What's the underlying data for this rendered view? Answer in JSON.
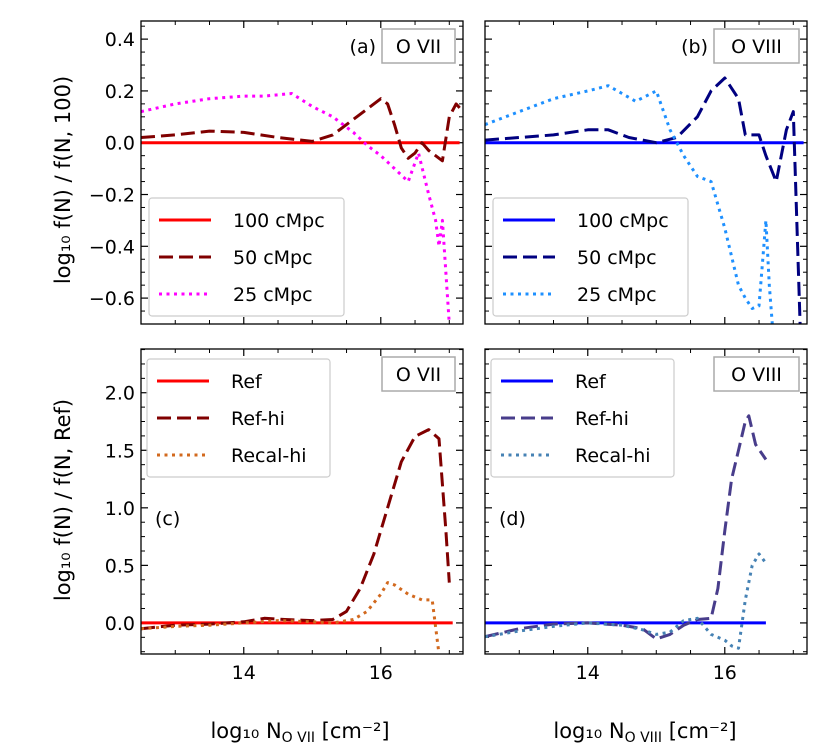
{
  "chart_data": [
    {
      "id": "a",
      "type": "line",
      "panel_label": "(a)",
      "ion_label": "O VII",
      "xlim": [
        12.5,
        17.2
      ],
      "ylim": [
        -0.7,
        0.47
      ],
      "xticks": [
        14,
        16
      ],
      "xtick_labels": [
        "14",
        "16"
      ],
      "yticks": [
        -0.6,
        -0.4,
        -0.2,
        0.0,
        0.2,
        0.4
      ],
      "ytick_labels": [
        "−0.6",
        "−0.4",
        "−0.2",
        "0.0",
        "0.2",
        "0.4"
      ],
      "legend_loc": "lower-left",
      "series": [
        {
          "name": "100 cMpc",
          "color": "#ff0000",
          "dash": "solid",
          "x": [
            12.5,
            17.15
          ],
          "y": [
            0.0,
            0.0
          ]
        },
        {
          "name": "50 cMpc",
          "color": "#800000",
          "dash": "dashed",
          "x": [
            12.5,
            13.0,
            13.5,
            14.0,
            14.5,
            15.0,
            15.3,
            15.6,
            15.8,
            16.0,
            16.1,
            16.2,
            16.3,
            16.4,
            16.5,
            16.6,
            16.7,
            16.8,
            16.9,
            17.0,
            17.1,
            17.2
          ],
          "y": [
            0.02,
            0.03,
            0.045,
            0.04,
            0.02,
            0.005,
            0.03,
            0.09,
            0.13,
            0.17,
            0.15,
            0.07,
            -0.02,
            -0.06,
            -0.04,
            0.0,
            -0.03,
            -0.05,
            -0.07,
            0.1,
            0.15,
            0.12
          ]
        },
        {
          "name": "25 cMpc",
          "color": "#ff00ff",
          "dash": "dotted",
          "x": [
            12.5,
            13.0,
            13.5,
            14.0,
            14.3,
            14.7,
            15.0,
            15.3,
            15.6,
            15.8,
            16.0,
            16.2,
            16.4,
            16.55,
            16.7,
            16.8,
            16.85,
            16.9,
            17.0
          ],
          "y": [
            0.12,
            0.15,
            0.17,
            0.18,
            0.18,
            0.19,
            0.14,
            0.1,
            0.04,
            -0.01,
            -0.05,
            -0.1,
            -0.15,
            -0.04,
            -0.2,
            -0.3,
            -0.4,
            -0.3,
            -0.7
          ]
        }
      ]
    },
    {
      "id": "b",
      "type": "line",
      "panel_label": "(b)",
      "ion_label": "O VIII",
      "xlim": [
        12.5,
        17.2
      ],
      "ylim": [
        -0.7,
        0.47
      ],
      "xticks": [
        14,
        16
      ],
      "xtick_labels": [
        "14",
        "16"
      ],
      "yticks": [
        -0.6,
        -0.4,
        -0.2,
        0.0,
        0.2,
        0.4
      ],
      "legend_loc": "lower-left",
      "series": [
        {
          "name": "100 cMpc",
          "color": "#0000ff",
          "dash": "solid",
          "x": [
            12.5,
            17.15
          ],
          "y": [
            0.0,
            0.0
          ]
        },
        {
          "name": "50 cMpc",
          "color": "#000080",
          "dash": "dashed",
          "x": [
            12.5,
            13.0,
            13.5,
            14.0,
            14.3,
            14.6,
            15.0,
            15.3,
            15.6,
            15.8,
            16.0,
            16.2,
            16.3,
            16.5,
            16.6,
            16.75,
            16.9,
            17.0,
            17.1
          ],
          "y": [
            0.01,
            0.02,
            0.03,
            0.05,
            0.05,
            0.02,
            0.0,
            0.02,
            0.1,
            0.2,
            0.25,
            0.17,
            0.03,
            0.03,
            -0.05,
            -0.15,
            0.05,
            0.12,
            -0.7
          ]
        },
        {
          "name": "25 cMpc",
          "color": "#1e90ff",
          "dash": "dotted",
          "x": [
            12.5,
            13.0,
            13.5,
            14.0,
            14.3,
            14.5,
            14.7,
            15.0,
            15.2,
            15.4,
            15.6,
            15.8,
            16.0,
            16.2,
            16.3,
            16.4,
            16.5,
            16.6,
            16.65,
            16.7
          ],
          "y": [
            0.07,
            0.12,
            0.17,
            0.2,
            0.22,
            0.19,
            0.16,
            0.2,
            0.05,
            -0.05,
            -0.13,
            -0.15,
            -0.33,
            -0.55,
            -0.6,
            -0.64,
            -0.63,
            -0.3,
            -0.55,
            -0.72
          ]
        }
      ]
    },
    {
      "id": "c",
      "type": "line",
      "panel_label": "(c)",
      "ion_label": "O VII",
      "xlim": [
        12.5,
        17.2
      ],
      "ylim": [
        -0.27,
        2.38
      ],
      "xticks": [
        14,
        16
      ],
      "xtick_labels": [
        "14",
        "16"
      ],
      "yticks": [
        0.0,
        0.5,
        1.0,
        1.5,
        2.0
      ],
      "ytick_labels": [
        "0.0",
        "0.5",
        "1.0",
        "1.5",
        "2.0"
      ],
      "legend_loc": "upper-left",
      "series": [
        {
          "name": "Ref",
          "color": "#ff0000",
          "dash": "solid",
          "x": [
            12.5,
            17.05
          ],
          "y": [
            0.0,
            0.0
          ]
        },
        {
          "name": "Ref-hi",
          "color": "#800000",
          "dash": "dashed",
          "x": [
            12.5,
            13.0,
            13.5,
            14.0,
            14.3,
            14.6,
            15.0,
            15.3,
            15.5,
            15.7,
            15.9,
            16.1,
            16.3,
            16.5,
            16.7,
            16.85,
            16.95,
            17.0
          ],
          "y": [
            -0.05,
            -0.02,
            -0.01,
            0.01,
            0.04,
            0.03,
            0.02,
            0.03,
            0.1,
            0.3,
            0.6,
            1.0,
            1.4,
            1.62,
            1.68,
            1.6,
            0.8,
            0.35
          ]
        },
        {
          "name": "Recal-hi",
          "color": "#d2691e",
          "dash": "dotted",
          "x": [
            12.5,
            13.0,
            13.5,
            14.0,
            14.5,
            15.0,
            15.3,
            15.6,
            15.8,
            16.0,
            16.1,
            16.2,
            16.4,
            16.6,
            16.75,
            16.85
          ],
          "y": [
            -0.05,
            -0.03,
            -0.02,
            0.0,
            0.02,
            0.01,
            0.0,
            0.03,
            0.1,
            0.25,
            0.35,
            0.33,
            0.25,
            0.2,
            0.2,
            -0.27
          ]
        }
      ]
    },
    {
      "id": "d",
      "type": "line",
      "panel_label": "(d)",
      "ion_label": "O VIII",
      "xlim": [
        12.5,
        17.2
      ],
      "ylim": [
        -0.27,
        2.38
      ],
      "xticks": [
        14,
        16
      ],
      "xtick_labels": [
        "14",
        "16"
      ],
      "yticks": [
        0.0,
        0.5,
        1.0,
        1.5,
        2.0
      ],
      "legend_loc": "upper-left",
      "series": [
        {
          "name": "Ref",
          "color": "#0000ff",
          "dash": "solid",
          "x": [
            12.5,
            16.6
          ],
          "y": [
            0.0,
            0.0
          ]
        },
        {
          "name": "Ref-hi",
          "color": "#483d8b",
          "dash": "dashed",
          "x": [
            12.5,
            13.0,
            13.5,
            14.0,
            14.5,
            14.8,
            15.0,
            15.2,
            15.4,
            15.6,
            15.8,
            15.9,
            16.0,
            16.1,
            16.2,
            16.3,
            16.35,
            16.45,
            16.6
          ],
          "y": [
            -0.12,
            -0.05,
            -0.01,
            0.0,
            -0.02,
            -0.05,
            -0.14,
            -0.1,
            -0.02,
            0.03,
            0.04,
            0.3,
            0.8,
            1.25,
            1.5,
            1.75,
            1.8,
            1.55,
            1.42
          ]
        },
        {
          "name": "Recal-hi",
          "color": "#4682b4",
          "dash": "dotted",
          "x": [
            12.5,
            13.0,
            13.5,
            14.0,
            14.5,
            14.8,
            15.0,
            15.2,
            15.4,
            15.6,
            15.8,
            16.0,
            16.1,
            16.2,
            16.3,
            16.4,
            16.5,
            16.6
          ],
          "y": [
            -0.12,
            -0.07,
            -0.03,
            0.0,
            -0.02,
            -0.06,
            -0.1,
            -0.08,
            0.02,
            0.04,
            -0.1,
            -0.15,
            -0.2,
            -0.22,
            0.2,
            0.5,
            0.6,
            0.52
          ]
        }
      ]
    }
  ],
  "axes": {
    "ylabel_top": "log₁₀ f(N) / f(N, 100)",
    "ylabel_bottom": "log₁₀ f(N) / f(N, Ref)",
    "xlabel_left": "log₁₀ N",
    "xlabel_left_sub": "O VII",
    "xlabel_right": "log₁₀ N",
    "xlabel_right_sub": "O VIII",
    "xlabel_unit": " [cm⁻²]"
  }
}
